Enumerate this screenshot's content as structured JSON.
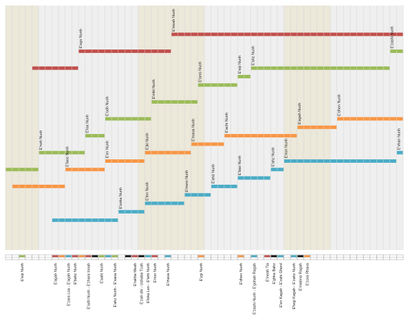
{
  "colors": {
    "background": "#ffffff",
    "band_light": "#efefef",
    "band_tan": "#ece8da",
    "grid_line": "#d4d4d4",
    "strip_border": "#9a9a9a",
    "dark": "#111111"
  },
  "chart_data": {
    "type": "timeline",
    "title": "",
    "xlabel": "",
    "ylabel": "",
    "grid": true,
    "columns": 60,
    "bands": [
      {
        "from": 0,
        "to": 5,
        "tone": "tan"
      },
      {
        "from": 5,
        "to": 20,
        "tone": "light"
      },
      {
        "from": 20,
        "to": 30,
        "tone": "tan"
      },
      {
        "from": 30,
        "to": 42,
        "tone": "light"
      },
      {
        "from": 42,
        "to": 49,
        "tone": "tan"
      },
      {
        "from": 49,
        "to": 60,
        "tone": "light"
      }
    ],
    "series": [
      {
        "color": "#c0504d",
        "segments": [
          {
            "start": 4,
            "end": 11,
            "level": 2,
            "label": ""
          },
          {
            "start": 11,
            "end": 25,
            "level": 1,
            "label": "E'ego Nunh"
          },
          {
            "start": 25,
            "end": 60,
            "level": 0,
            "label": "E'meah Nunh"
          }
        ]
      },
      {
        "color": "#9bbb59",
        "segments": [
          {
            "start": 0,
            "end": 5,
            "level": 8,
            "label": ""
          },
          {
            "start": 5,
            "end": 12,
            "level": 7,
            "label": "E'noh Nunh"
          },
          {
            "start": 12,
            "end": 15,
            "level": 6,
            "label": "E'loa Nunh"
          },
          {
            "start": 15,
            "end": 22,
            "level": 5,
            "label": "E'odh Nunh"
          },
          {
            "start": 22,
            "end": 29,
            "level": 4,
            "label": "E'nikii Nunh"
          },
          {
            "start": 29,
            "end": 35,
            "level": 3,
            "label": "E'sero Nunh"
          },
          {
            "start": 35,
            "end": 37,
            "level": 2.5,
            "label": "E'eqi Nunh"
          },
          {
            "start": 37,
            "end": 58,
            "level": 2,
            "label": "E'ahz Nunh"
          },
          {
            "start": 58,
            "end": 60,
            "level": 1,
            "label": "E'zashi Nunh"
          }
        ]
      },
      {
        "color": "#f79646",
        "segments": [
          {
            "start": 1,
            "end": 9,
            "level": 9,
            "label": ""
          },
          {
            "start": 9,
            "end": 15,
            "level": 8,
            "label": "E'laos Nunh"
          },
          {
            "start": 15,
            "end": 21,
            "level": 7.5,
            "label": "E'en Nunh"
          },
          {
            "start": 21,
            "end": 28,
            "level": 7,
            "label": "E'jki Nunh"
          },
          {
            "start": 28,
            "end": 33,
            "level": 6.5,
            "label": "E'maoa Nunh"
          },
          {
            "start": 33,
            "end": 44,
            "level": 6,
            "label": "E'achi Nunh"
          },
          {
            "start": 44,
            "end": 50,
            "level": 5.5,
            "label": "E'agah Nunh"
          },
          {
            "start": 50,
            "end": 60,
            "level": 5,
            "label": "E'dhen Nunh"
          }
        ]
      },
      {
        "color": "#4bacc6",
        "segments": [
          {
            "start": 7,
            "end": 17,
            "level": 11,
            "label": ""
          },
          {
            "start": 17,
            "end": 21,
            "level": 10.5,
            "label": "E'ooka Nunh"
          },
          {
            "start": 21,
            "end": 27,
            "level": 10,
            "label": "E'len Nunh"
          },
          {
            "start": 27,
            "end": 31,
            "level": 9.5,
            "label": "E'mero Nunh"
          },
          {
            "start": 31,
            "end": 35,
            "level": 9,
            "label": "E'ahd Nunh"
          },
          {
            "start": 35,
            "end": 40,
            "level": 8.5,
            "label": "E'bao Nunh"
          },
          {
            "start": 40,
            "end": 42,
            "level": 8,
            "label": "E'ahz Nunh"
          },
          {
            "start": 42,
            "end": 59,
            "level": 7.5,
            "label": "E'rion Nunh"
          },
          {
            "start": 59,
            "end": 60,
            "level": 7,
            "label": "E'vhan Nunh"
          }
        ]
      }
    ],
    "strip": [
      {
        "col": 2,
        "color": "#9bbb59",
        "label": "E'eqi Nunh"
      },
      {
        "col": 7,
        "color": "#c0504d",
        "label": "E'agah Nunh"
      },
      {
        "col": 8,
        "color": "#f79646",
        "label": ""
      },
      {
        "col": 9,
        "color": "#4bacc6",
        "label": "E'zara Loa - E'agah Nunh"
      },
      {
        "col": 10,
        "color": "#c0504d",
        "label": "E'bahz Nunh"
      },
      {
        "col": 11,
        "color": "#f79646",
        "label": ""
      },
      {
        "col": 12,
        "color": "#c0504d",
        "label": "E'odh Nunh - E'zhara Innah"
      },
      {
        "col": 13,
        "color": "#111111",
        "label": ""
      },
      {
        "col": 14,
        "color": "#9bbb59",
        "label": "E'aahi Nunh"
      },
      {
        "col": 15,
        "color": "#4bacc6",
        "label": ""
      },
      {
        "col": 16,
        "color": "#9bbb59",
        "label": "E'ahz Nunh - E'saoa Nunh"
      },
      {
        "col": 18,
        "color": "#111111",
        "label": ""
      },
      {
        "col": 19,
        "color": "#c0504d",
        "label": "E'rakha Meah"
      },
      {
        "col": 20,
        "color": "#111111",
        "label": "E'zah dhi - Ushaba Tzah"
      },
      {
        "col": 21,
        "color": "#4bacc6",
        "label": "E'loka Len - E'tehi Nunh"
      },
      {
        "col": 22,
        "color": "#c0504d",
        "label": "E'rion Nunh"
      },
      {
        "col": 24,
        "color": "#4bacc6",
        "label": "E'rhava Nunh"
      },
      {
        "col": 29,
        "color": "#f79646",
        "label": "E'ygi Nunh"
      },
      {
        "col": 35,
        "color": "#f79646",
        "label": "E'dhen Nunh"
      },
      {
        "col": 37,
        "color": "#4bacc6",
        "label": "E'zashi Nunh - E'gohah Ragah"
      },
      {
        "col": 39,
        "color": "#c0504d",
        "label": "E'meah Tia"
      },
      {
        "col": 40,
        "color": "#111111",
        "label": "E'ghka Bahz"
      },
      {
        "col": 41,
        "color": "#4bacc6",
        "label": "E'en Kagah - E'zahi Gherd"
      },
      {
        "col": 43,
        "color": "#4bacc6",
        "label": "E'lwgi Kagah - E'zahz Nunh"
      },
      {
        "col": 44,
        "color": "#111111",
        "label": "E'malena Ragah"
      },
      {
        "col": 45,
        "color": "#f79646",
        "label": "E'zora Rhava"
      }
    ]
  }
}
